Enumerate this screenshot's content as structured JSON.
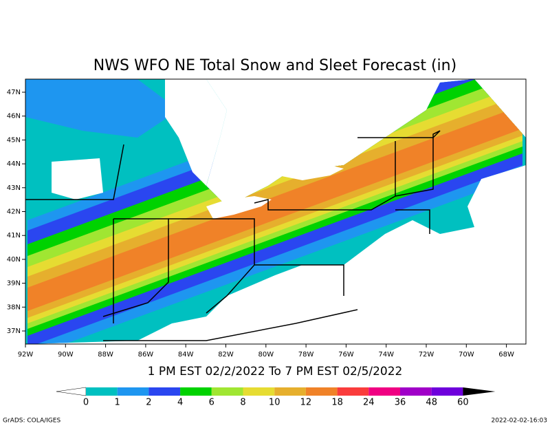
{
  "title": "NWS WFO NE Total Snow and Sleet Forecast (in)",
  "valid_period": "1 PM EST 02/2/2022 To 7 PM EST 02/5/2022",
  "lat_labels": [
    "47N",
    "46N",
    "45N",
    "44N",
    "43N",
    "42N",
    "41N",
    "40N",
    "39N",
    "38N",
    "37N"
  ],
  "lon_labels": [
    "92W",
    "90W",
    "88W",
    "86W",
    "84W",
    "82W",
    "80W",
    "78W",
    "76W",
    "74W",
    "72W",
    "70W",
    "68W"
  ],
  "colorbar": {
    "labels": [
      0,
      1,
      2,
      4,
      6,
      8,
      10,
      12,
      18,
      24,
      36,
      48,
      60
    ],
    "colors": [
      "#00c0c0",
      "#1e96f0",
      "#2a46f0",
      "#00d200",
      "#a0e632",
      "#e6dc32",
      "#e6af2d",
      "#f08228",
      "#fa3c3c",
      "#f00082",
      "#a000c8",
      "#6e00dc"
    ],
    "under_color": "#ffffff",
    "over_color": "#000000"
  },
  "footer_left": "GrADS: COLA/IGES",
  "footer_right": "2022-02-02-16:03"
}
